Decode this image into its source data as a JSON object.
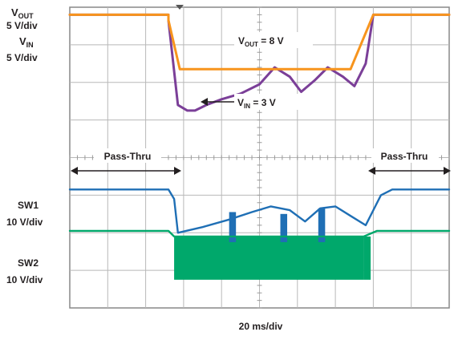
{
  "chart_data": {
    "type": "line",
    "x_scale": "20 ms/div",
    "x_divisions": 10,
    "y_divisions": 8,
    "grid": true,
    "channels": [
      {
        "id": "vout",
        "label_main": "V",
        "label_sub": "OUT",
        "scale": "5 V/div",
        "color": "#f7941d"
      },
      {
        "id": "vin",
        "label_main": "V",
        "label_sub": "IN",
        "scale": "5 V/div",
        "color": "#7b3f98"
      },
      {
        "id": "sw1",
        "label_main": "SW1",
        "label_sub": "",
        "scale": "10 V/div",
        "color": "#1f6fb5"
      },
      {
        "id": "sw2",
        "label_main": "SW2",
        "label_sub": "",
        "scale": "10 V/div",
        "color": "#00a86b"
      }
    ],
    "annotations": {
      "vout": {
        "main": "V",
        "sub": "OUT",
        "rest": " = 8 V"
      },
      "vin": {
        "main": "V",
        "sub": "IN",
        "rest": " = 3 V"
      },
      "pass_left": "Pass-Thru",
      "pass_right": "Pass-Thru"
    },
    "traces": {
      "vout": [
        [
          0,
          0.2
        ],
        [
          2.6,
          0.2
        ],
        [
          2.6,
          0.35
        ],
        [
          2.9,
          1.65
        ],
        [
          7.4,
          1.65
        ],
        [
          8,
          0.2
        ],
        [
          10,
          0.2
        ]
      ],
      "vin": [
        [
          0,
          0.2
        ],
        [
          2.6,
          0.2
        ],
        [
          2.6,
          0.35
        ],
        [
          2.85,
          2.6
        ],
        [
          3.1,
          2.75
        ],
        [
          3.3,
          2.75
        ],
        [
          3.6,
          2.6
        ],
        [
          4.0,
          2.45
        ],
        [
          4.5,
          2.3
        ],
        [
          5.0,
          2.05
        ],
        [
          5.4,
          1.6
        ],
        [
          5.8,
          1.85
        ],
        [
          6.1,
          2.25
        ],
        [
          6.45,
          1.95
        ],
        [
          6.8,
          1.6
        ],
        [
          7.2,
          1.85
        ],
        [
          7.5,
          2.1
        ],
        [
          7.8,
          1.5
        ],
        [
          8,
          0.2
        ],
        [
          10,
          0.2
        ]
      ],
      "sw1": [
        [
          0,
          4.85
        ],
        [
          2.6,
          4.85
        ],
        [
          2.75,
          5.1
        ],
        [
          2.85,
          6.0
        ],
        [
          3.5,
          5.85
        ],
        [
          4.2,
          5.65
        ],
        [
          4.8,
          5.45
        ],
        [
          5.3,
          5.3
        ],
        [
          5.8,
          5.4
        ],
        [
          6.2,
          5.7
        ],
        [
          6.6,
          5.35
        ],
        [
          7.0,
          5.3
        ],
        [
          7.4,
          5.55
        ],
        [
          7.8,
          5.8
        ],
        [
          8.2,
          5.0
        ],
        [
          8.5,
          4.85
        ],
        [
          10,
          4.85
        ]
      ],
      "sw2": [
        [
          0,
          5.95
        ],
        [
          2.6,
          5.95
        ],
        [
          2.75,
          6.1
        ],
        [
          7.75,
          6.1
        ],
        [
          8.1,
          5.95
        ],
        [
          10,
          5.95
        ]
      ]
    },
    "bursts": {
      "sw1": [
        [
          4.2,
          5.45,
          6.25
        ],
        [
          5.55,
          5.5,
          6.25
        ],
        [
          6.55,
          5.35,
          6.25
        ]
      ],
      "sw2": [
        [
          2.75,
          6.1,
          7.25
        ],
        [
          7.75,
          6.1,
          7.25
        ]
      ]
    }
  }
}
